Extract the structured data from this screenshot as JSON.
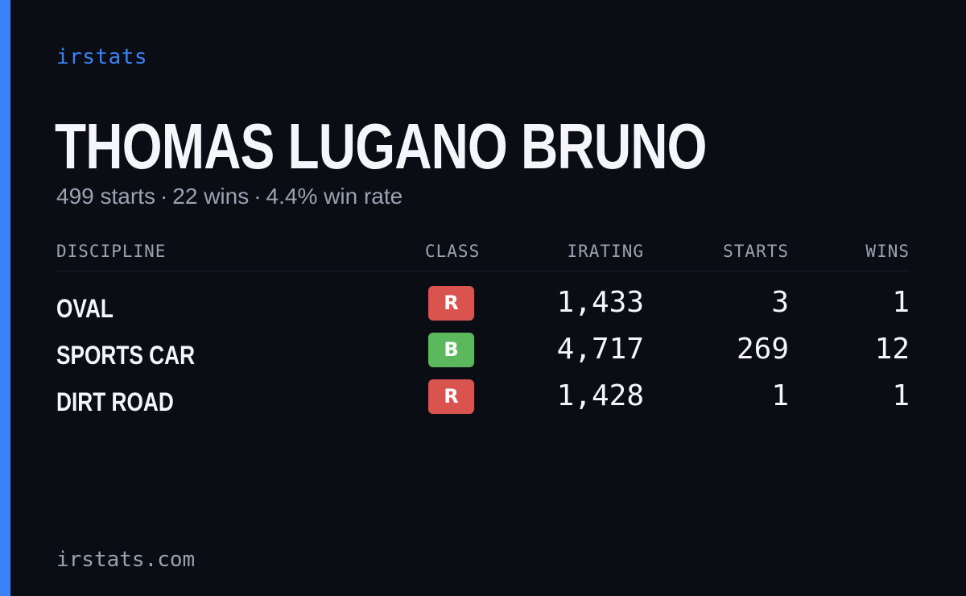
{
  "brand": "irstats",
  "driver_name": "THOMAS LUGANO BRUNO",
  "summary": {
    "starts": "499 starts",
    "wins": "22 wins",
    "win_rate": "4.4% win rate",
    "separator": "·"
  },
  "table": {
    "headers": {
      "discipline": "DISCIPLINE",
      "class": "CLASS",
      "irating": "IRATING",
      "starts": "STARTS",
      "wins": "WINS"
    },
    "rows": [
      {
        "discipline": "OVAL",
        "class": "R",
        "class_color": "#d9534f",
        "irating": "1,433",
        "starts": "3",
        "wins": "1"
      },
      {
        "discipline": "SPORTS CAR",
        "class": "B",
        "class_color": "#5cb85c",
        "irating": "4,717",
        "starts": "269",
        "wins": "12"
      },
      {
        "discipline": "DIRT ROAD",
        "class": "R",
        "class_color": "#d9534f",
        "irating": "1,428",
        "starts": "1",
        "wins": "1"
      }
    ]
  },
  "footer": "irstats.com",
  "colors": {
    "background": "#0a0d14",
    "accent": "#3b82f6",
    "muted_text": "#9aa3b2",
    "primary_text": "#f4f6fa"
  }
}
